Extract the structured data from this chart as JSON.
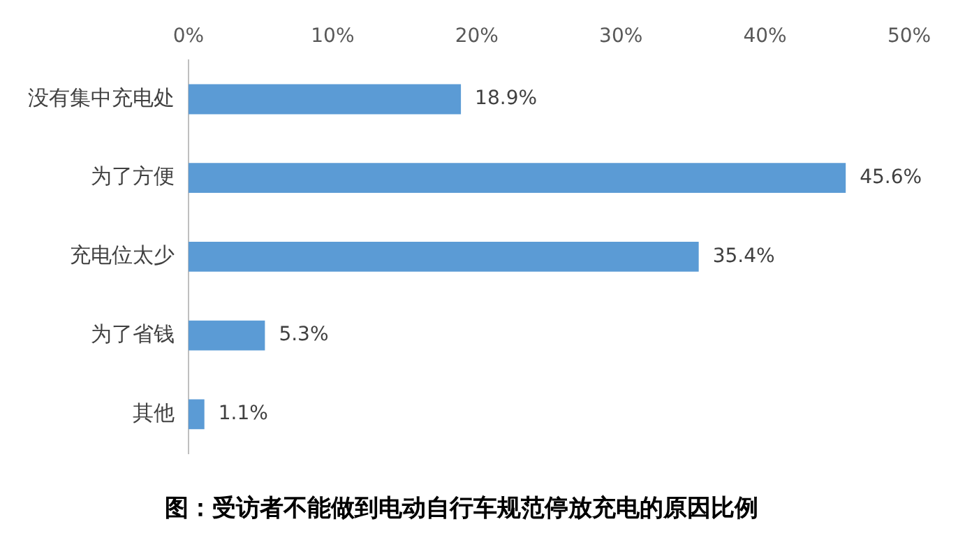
{
  "chart_data": {
    "type": "bar",
    "orientation": "horizontal",
    "title": "图：受访者不能做到电动自行车规范停放充电的原因比例",
    "categories": [
      "没有集中充电处",
      "为了方便",
      "充电位太少",
      "为了省钱",
      "其他"
    ],
    "values": [
      18.9,
      45.6,
      35.4,
      5.3,
      1.1
    ],
    "color": "#5b9bd5",
    "value_labels": [
      "18.9%",
      "45.6%",
      "35.4%",
      "5.3%",
      "1.1%"
    ],
    "xlim": [
      0,
      50
    ],
    "xticks": [
      {
        "value": 0,
        "label": "0%"
      },
      {
        "value": 10,
        "label": "10%"
      },
      {
        "value": 20,
        "label": "20%"
      },
      {
        "value": 30,
        "label": "30%"
      },
      {
        "value": 40,
        "label": "40%"
      },
      {
        "value": 50,
        "label": "50%"
      }
    ],
    "grid": false,
    "legend": false
  }
}
